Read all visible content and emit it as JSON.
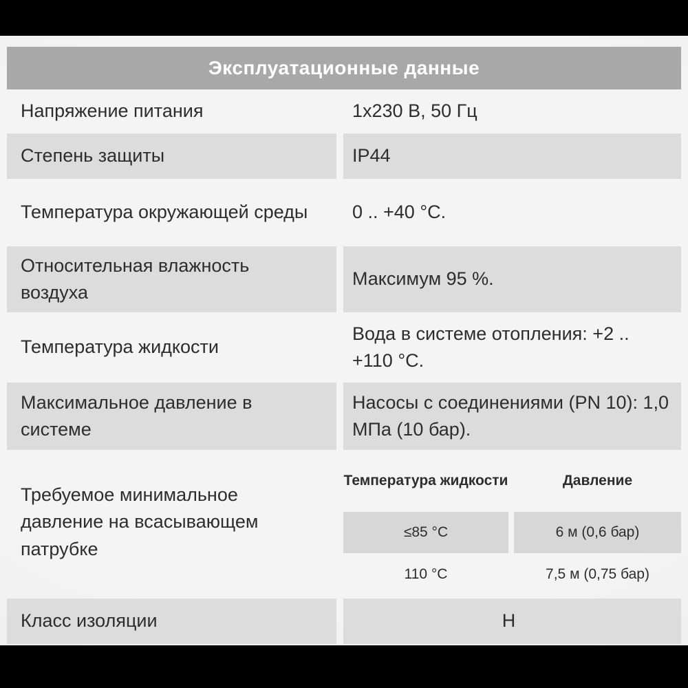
{
  "header": {
    "title": "Эксплуатационные данные"
  },
  "colors": {
    "title_bar_bg": "#a8a8a8",
    "title_text": "#ffffff",
    "shaded_row_bg": "#dcdcdc",
    "body_text": "#2d2d2d",
    "page_bg": "#f2f2f2",
    "letterbox": "#000000"
  },
  "rows": [
    {
      "label": "Напряжение питания",
      "value": "1x230 В, 50 Гц",
      "shaded": false
    },
    {
      "label": "Степень защиты",
      "value": "IP44",
      "shaded": true
    },
    {
      "label": "Температура окружающей среды",
      "value": "0 .. +40 °C.",
      "shaded": false
    },
    {
      "label": "Относительная влажность воздуха",
      "value": "Максимум 95 %.",
      "shaded": true
    },
    {
      "label": "Температура жидкости",
      "value": "Вода в системе отопления: +2 .. +110 °C.",
      "shaded": false
    },
    {
      "label": "Максимальное давление в системе",
      "value": "Насосы с соединениями (PN 10): 1,0 МПа (10 бар).",
      "shaded": true
    },
    {
      "label": "Требуемое минимальное давление на всасывающем патрубке",
      "shaded": false,
      "nested_table": {
        "columns": [
          "Температура жидкости",
          "Давление"
        ],
        "rows": [
          {
            "temperature": "≤85 °C",
            "pressure": "6 м (0,6 бар)",
            "shaded": true
          },
          {
            "temperature": "110 °C",
            "pressure": "7,5 м (0,75 бар)",
            "shaded": false
          }
        ]
      }
    },
    {
      "label": "Класс изоляции",
      "value": "H",
      "shaded": true,
      "value_centered": true
    }
  ]
}
